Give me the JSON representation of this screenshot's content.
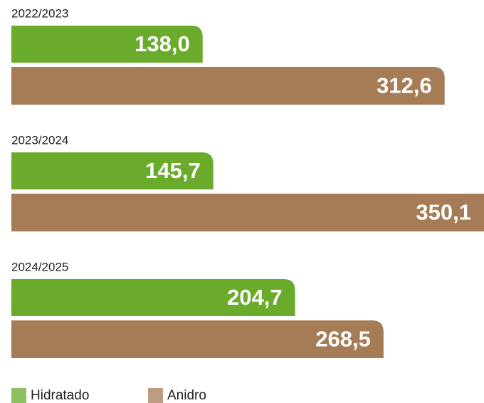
{
  "chart_data": {
    "type": "bar",
    "orientation": "horizontal",
    "categories": [
      "2022/2023",
      "2023/2024",
      "2024/2025"
    ],
    "series": [
      {
        "name": "Hidratado",
        "color": "#6aab2c",
        "values": [
          138.0,
          145.7,
          204.7
        ],
        "value_labels": [
          "138,0",
          "145,7",
          "204,7"
        ]
      },
      {
        "name": "Anidro",
        "color": "#a57c56",
        "values": [
          312.6,
          350.1,
          268.5
        ],
        "value_labels": [
          "312,6",
          "350,1",
          "268,5"
        ]
      }
    ],
    "xlim": [
      0,
      341
    ]
  }
}
